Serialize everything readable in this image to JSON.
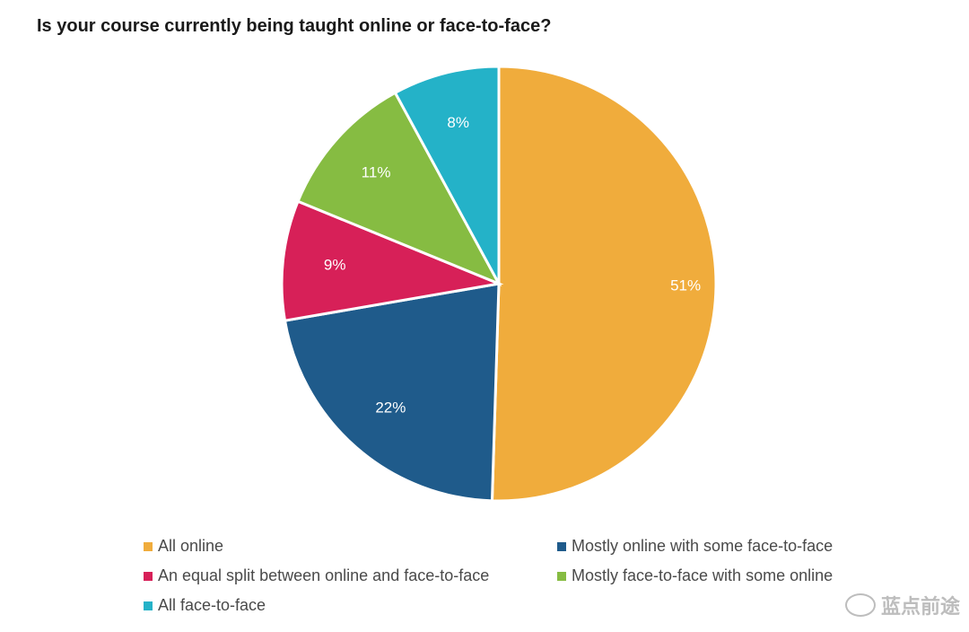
{
  "chart_data": {
    "type": "pie",
    "title": "Is your course currently being taught online or face-to-face?",
    "slices": [
      {
        "name": "All online",
        "value": 51,
        "label": "51%",
        "color": "#F0AC3C"
      },
      {
        "name": "Mostly online with some face-to-face",
        "value": 22,
        "label": "22%",
        "color": "#1F5B8B"
      },
      {
        "name": "An equal split between online and face-to-face",
        "value": 9,
        "label": "9%",
        "color": "#D72058"
      },
      {
        "name": "Mostly face-to-face with some online",
        "value": 11,
        "label": "11%",
        "color": "#86BC42"
      },
      {
        "name": "All face-to-face",
        "value": 8,
        "label": "8%",
        "color": "#24B2C8"
      }
    ],
    "legend_position": "bottom"
  },
  "watermark": {
    "text": "蓝点前途"
  }
}
